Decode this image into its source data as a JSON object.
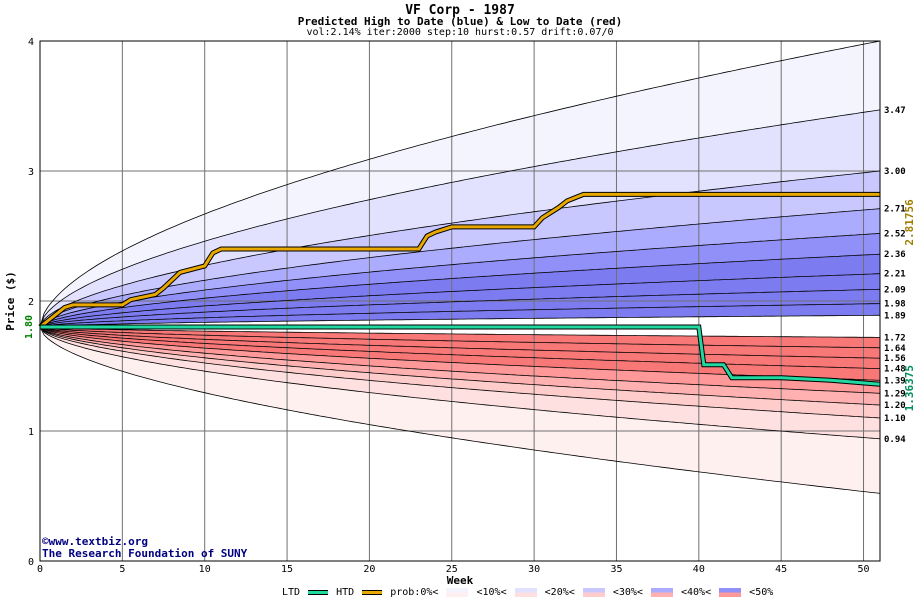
{
  "header": {
    "title": "VF Corp - 1987",
    "subtitle": "Predicted High to Date (blue) &  Low to Date (red)",
    "params": "vol:2.14% iter:2000 step:10 hurst:0.57 drift:0.07/0"
  },
  "credits": {
    "line1": "©www.textbiz.org",
    "line2": "The Research Foundation of SUNY"
  },
  "legend": {
    "ltd": "LTD",
    "htd": "HTD",
    "prob": "prob:0%<",
    "b10": "<10%<",
    "b20": "<20%<",
    "b30": "<30%<",
    "b40": "<40%<",
    "b50": "<50%"
  },
  "colors": {
    "htd_line": "#e8a800",
    "ltd_line": "#20d8a0",
    "blue_bands": [
      "#f4f4ff",
      "#e2e2ff",
      "#c8c8ff",
      "#acacff",
      "#9090f8",
      "#7c7cf0"
    ],
    "red_bands": [
      "#fff0f0",
      "#ffe0e0",
      "#ffcccc",
      "#ffb0b0",
      "#ff9898",
      "#f87878"
    ]
  },
  "chart_data": {
    "type": "area",
    "xlabel": "Week",
    "ylabel": "Price ($)",
    "xlim": [
      0,
      51
    ],
    "ylim": [
      0,
      4
    ],
    "x_ticks": [
      0,
      5,
      10,
      15,
      20,
      25,
      30,
      35,
      40,
      45,
      50
    ],
    "y_ticks": [
      0,
      1,
      2,
      3,
      4
    ],
    "grid": true,
    "start_price": 1.8,
    "start_label": "1.80",
    "high_quantile_endpoints": [
      {
        "value": 4.0,
        "label": ""
      },
      {
        "value": 3.47,
        "label": "3.47"
      },
      {
        "value": 3.0,
        "label": "3.00"
      },
      {
        "value": 2.71,
        "label": "2.71"
      },
      {
        "value": 2.52,
        "label": "2.52"
      },
      {
        "value": 2.36,
        "label": "2.36"
      },
      {
        "value": 2.21,
        "label": "2.21"
      },
      {
        "value": 2.09,
        "label": "2.09"
      },
      {
        "value": 1.98,
        "label": "1.98"
      },
      {
        "value": 1.89,
        "label": "1.89"
      }
    ],
    "low_quantile_endpoints": [
      {
        "value": 1.72,
        "label": "1.72"
      },
      {
        "value": 1.64,
        "label": "1.64"
      },
      {
        "value": 1.56,
        "label": "1.56"
      },
      {
        "value": 1.48,
        "label": "1.48"
      },
      {
        "value": 1.39,
        "label": "1.39"
      },
      {
        "value": 1.29,
        "label": "1.29"
      },
      {
        "value": 1.2,
        "label": "1.20"
      },
      {
        "value": 1.1,
        "label": "1.10"
      },
      {
        "value": 0.94,
        "label": "0.94"
      },
      {
        "value": 0.52,
        "label": ""
      }
    ],
    "series": [
      {
        "name": "HTD",
        "end_label": "2.81756",
        "points": [
          [
            0,
            1.8
          ],
          [
            1,
            1.9
          ],
          [
            1.5,
            1.95
          ],
          [
            2,
            1.97
          ],
          [
            5,
            1.97
          ],
          [
            5.5,
            2.01
          ],
          [
            7,
            2.05
          ],
          [
            7.5,
            2.1
          ],
          [
            8,
            2.16
          ],
          [
            8.5,
            2.22
          ],
          [
            10,
            2.27
          ],
          [
            10.5,
            2.37
          ],
          [
            11,
            2.4
          ],
          [
            15,
            2.4
          ],
          [
            23,
            2.4
          ],
          [
            23.5,
            2.5
          ],
          [
            24,
            2.53
          ],
          [
            25,
            2.57
          ],
          [
            30,
            2.57
          ],
          [
            30.5,
            2.64
          ],
          [
            31,
            2.68
          ],
          [
            31.5,
            2.72
          ],
          [
            32,
            2.77
          ],
          [
            33,
            2.82
          ],
          [
            51,
            2.82
          ]
        ]
      },
      {
        "name": "LTD",
        "end_label": "1.36375",
        "points": [
          [
            0,
            1.8
          ],
          [
            40,
            1.8
          ],
          [
            40.3,
            1.51
          ],
          [
            41.5,
            1.51
          ],
          [
            42,
            1.41
          ],
          [
            45,
            1.41
          ],
          [
            48,
            1.39
          ],
          [
            51,
            1.36
          ]
        ]
      }
    ]
  }
}
